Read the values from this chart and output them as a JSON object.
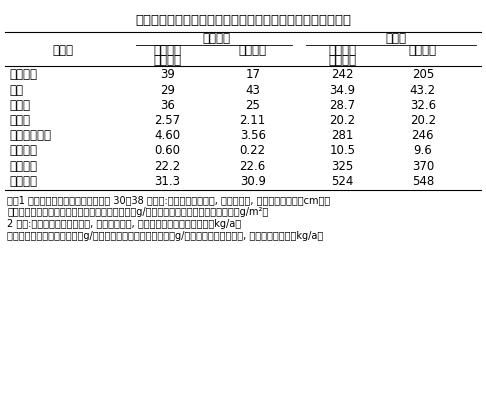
{
  "title": "表３　牧草跡地、野菜跡地における後作物の初期生育、収量",
  "col_header_row1": [
    "",
    "初期生育",
    "",
    "収　量",
    ""
  ],
  "col_header_row2": [
    "後作物",
    "牧草３年",
    "野菜跡地",
    "牧草３年",
    "野菜跡地"
  ],
  "col_header_row3": [
    "",
    "栽培跡地",
    "",
    "栽培跡地",
    ""
  ],
  "rows": [
    [
      "カンショ",
      "39",
      "17",
      "242",
      "205"
    ],
    [
      "陸稲",
      "29",
      "43",
      "34.9",
      "43.2"
    ],
    [
      "ダイズ",
      "36",
      "25",
      "28.7",
      "32.6"
    ],
    [
      "アズキ",
      "2.57",
      "2.11",
      "20.2",
      "20.2"
    ],
    [
      "スイートコン",
      "4.60",
      "3.56",
      "281",
      "246"
    ],
    [
      "エンサイ",
      "0.60",
      "0.22",
      "10.5",
      "9.6"
    ],
    [
      "キャベツ",
      "22.2",
      "22.6",
      "325",
      "370"
    ],
    [
      "ダイコン",
      "31.3",
      "30.9",
      "524",
      "548"
    ]
  ],
  "footnotes": [
    "注）1 初期生育（播苗・播種・移植後 30～38 日目）:カンショは主茎長, 陸稲は草丈, ダイズは主茎長（cm）、",
    "　　アズキ、スイートコーン、エンサイは乾重（g/株）、キャベツ、ダイコンは乾重（g/m²）",
    "2 収量:カンショは上いも生重, 陸稲は精乾重, ダイズ、アズキは子実乾重（kg/a）",
    "スイートコーンは籠苞生重（g/株）、エンサイは地上部乾重（g/株）、キャベツは球重, ダイコンは根重（kg/a）"
  ],
  "bg_color": "#ffffff",
  "text_color": "#000000",
  "font_size_title": 9.5,
  "font_size_header": 8.5,
  "font_size_data": 8.5,
  "font_size_footnote": 7.0
}
